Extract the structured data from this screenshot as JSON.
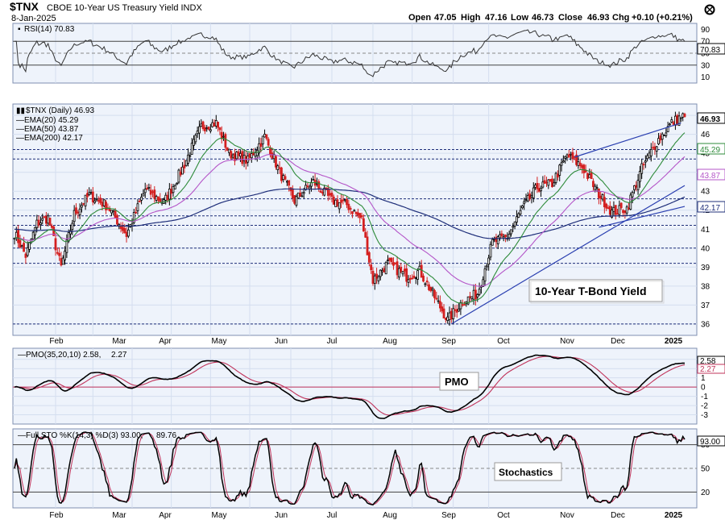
{
  "header": {
    "symbol": "$TNX",
    "name": "CBOE 10-Year US Treasury Yield INDX",
    "date": "8-Jan-2025",
    "open_label": "Open",
    "open": "47.05",
    "high_label": "High",
    "high": "47.16",
    "low_label": "Low",
    "low": "46.73",
    "close_label": "Close",
    "close": "46.93",
    "chg_label": "Chg",
    "chg": "+0.10 (+0.21%)"
  },
  "legend": {
    "rsi": "RSI(14) 70.83",
    "price": "$TNX (Daily) 46.93",
    "ema20": "EMA(20) 45.29",
    "ema50": "EMA(50) 43.87",
    "ema200": "EMA(200) 42.17",
    "pmo_prefix": "PMO(35,20,10) 2.58,",
    "pmo_signal": "2.27",
    "sto_prefix": "Full STO %K(14,3) %D(3) 93.00,",
    "sto_d": "89.76"
  },
  "annotations": {
    "price": "10-Year T-Bond Yield",
    "pmo": "PMO",
    "sto": "Stochastics"
  },
  "price_tags": {
    "close": "46.93",
    "ema20": "45.29",
    "ema50": "43.87",
    "ema200": "42.17",
    "rsi": "70.83",
    "pmo": "2.58",
    "pmo_signal": "2.27",
    "sto": "93.00"
  },
  "colors": {
    "grid": "#8fa6cf",
    "panel_bg": "#eef3fb",
    "ema20": "#2e8b3a",
    "ema50": "#b455c8",
    "ema200": "#1f2f7a",
    "pmo_signal": "#c0335a",
    "sto_d": "#c0335a",
    "up": "#000000",
    "down": "#d42020",
    "trend": "#2a3fb0",
    "zero_line": "#c0335a"
  },
  "chart_data": [
    {
      "type": "line",
      "panel": "rsi",
      "legend": "RSI(14) 70.83",
      "yticks": [
        10,
        30,
        50,
        70,
        90
      ],
      "ylim": [
        0,
        100
      ],
      "reference_lines": [
        30,
        50,
        70
      ],
      "last_value": 70.83
    },
    {
      "type": "candlestick",
      "panel": "price",
      "legend": "$TNX (Daily) 46.93",
      "ylim": [
        35.4,
        47.6
      ],
      "yticks": [
        36,
        37,
        38,
        39,
        40,
        41,
        42,
        43,
        44,
        45,
        46,
        47
      ],
      "xticks": [
        "Feb",
        "Mar",
        "Apr",
        "May",
        "Jun",
        "Jul",
        "Aug",
        "Sep",
        "Oct",
        "Nov",
        "Dec",
        "2025"
      ],
      "anchors": [
        {
          "d": 0,
          "v": 40.8
        },
        {
          "d": 6,
          "v": 39.6
        },
        {
          "d": 12,
          "v": 41.3
        },
        {
          "d": 18,
          "v": 41.6
        },
        {
          "d": 25,
          "v": 39.0
        },
        {
          "d": 32,
          "v": 41.8
        },
        {
          "d": 40,
          "v": 42.8
        },
        {
          "d": 50,
          "v": 42.2
        },
        {
          "d": 60,
          "v": 40.7
        },
        {
          "d": 70,
          "v": 43.1
        },
        {
          "d": 80,
          "v": 42.4
        },
        {
          "d": 90,
          "v": 44.2
        },
        {
          "d": 100,
          "v": 46.4
        },
        {
          "d": 108,
          "v": 46.6
        },
        {
          "d": 115,
          "v": 45.0
        },
        {
          "d": 125,
          "v": 44.6
        },
        {
          "d": 134,
          "v": 45.9
        },
        {
          "d": 142,
          "v": 44.0
        },
        {
          "d": 150,
          "v": 42.5
        },
        {
          "d": 160,
          "v": 43.5
        },
        {
          "d": 170,
          "v": 42.5
        },
        {
          "d": 178,
          "v": 42.3
        },
        {
          "d": 186,
          "v": 41.5
        },
        {
          "d": 192,
          "v": 38.3
        },
        {
          "d": 200,
          "v": 39.2
        },
        {
          "d": 210,
          "v": 38.5
        },
        {
          "d": 217,
          "v": 38.8
        },
        {
          "d": 224,
          "v": 37.6
        },
        {
          "d": 232,
          "v": 36.2
        },
        {
          "d": 240,
          "v": 37.2
        },
        {
          "d": 248,
          "v": 37.6
        },
        {
          "d": 256,
          "v": 40.3
        },
        {
          "d": 264,
          "v": 40.6
        },
        {
          "d": 272,
          "v": 42.1
        },
        {
          "d": 280,
          "v": 43.2
        },
        {
          "d": 288,
          "v": 43.4
        },
        {
          "d": 296,
          "v": 44.9
        },
        {
          "d": 304,
          "v": 44.3
        },
        {
          "d": 312,
          "v": 43.0
        },
        {
          "d": 320,
          "v": 41.9
        },
        {
          "d": 328,
          "v": 42.1
        },
        {
          "d": 336,
          "v": 44.2
        },
        {
          "d": 344,
          "v": 45.6
        },
        {
          "d": 352,
          "v": 46.6
        },
        {
          "d": 357,
          "v": 46.93
        }
      ],
      "support_levels": [
        36.0,
        39.2,
        40.0,
        41.2,
        41.7,
        42.6,
        44.7,
        45.2
      ],
      "trendlines": [
        {
          "from": [
            234,
            36.0
          ],
          "to": [
            359,
            43.3
          ]
        },
        {
          "from": [
            313,
            41.1
          ],
          "to": [
            359,
            42.2
          ]
        },
        {
          "from": [
            300,
            44.8
          ],
          "to": [
            357,
            46.6
          ]
        }
      ],
      "ema20_last": 45.29,
      "ema50_last": 43.87,
      "ema200_last": 42.17
    },
    {
      "type": "line",
      "panel": "pmo",
      "legend": "PMO(35,20,10) 2.58, 2.27",
      "ylim": [
        -4,
        4.2
      ],
      "yticks": [
        -3,
        -2,
        -1,
        0,
        1,
        2,
        3
      ],
      "zero_line": 0,
      "last_value": 2.58,
      "signal_last": 2.27
    },
    {
      "type": "line",
      "panel": "stochastics",
      "legend": "Full STO %K(14,3) %D(3) 93.00, 89.76",
      "ylim": [
        0,
        100
      ],
      "yticks": [
        20,
        50,
        80
      ],
      "reference_lines": [
        20,
        50,
        80
      ],
      "last_value": 93.0,
      "d_last": 89.76
    }
  ]
}
